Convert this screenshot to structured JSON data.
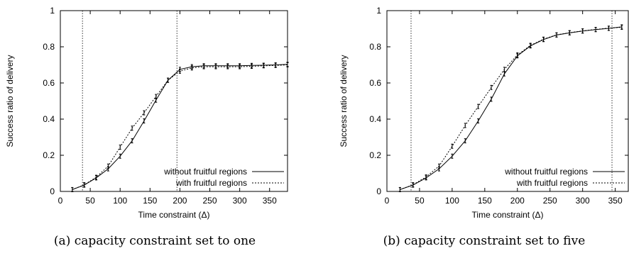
{
  "chart_data": [
    {
      "type": "line",
      "xlabel": "Time constraint (Δ)",
      "ylabel": "Success ratio of delivery",
      "xlim": [
        0,
        380
      ],
      "ylim": [
        0,
        1
      ],
      "xticks": [
        0,
        50,
        100,
        150,
        200,
        250,
        300,
        350
      ],
      "yticks": [
        0,
        0.2,
        0.4,
        0.6,
        0.8,
        1
      ],
      "ytick_labels": [
        "0",
        "0.2",
        "0.4",
        "0.6",
        "0.8",
        "1"
      ],
      "vlines": [
        37,
        195
      ],
      "legend": "bottom-right",
      "caption": "(a) capacity constraint set to one",
      "series": [
        {
          "name": "without fruitful regions",
          "style": "solid",
          "x": [
            20,
            40,
            60,
            80,
            100,
            120,
            140,
            160,
            180,
            200,
            220,
            240,
            260,
            280,
            300,
            320,
            340,
            360,
            380
          ],
          "y": [
            0.01,
            0.035,
            0.075,
            0.125,
            0.195,
            0.28,
            0.39,
            0.505,
            0.615,
            0.675,
            0.69,
            0.695,
            0.695,
            0.695,
            0.695,
            0.697,
            0.698,
            0.7,
            0.703
          ]
        },
        {
          "name": "with fruitful regions",
          "style": "dotted",
          "x": [
            20,
            40,
            60,
            80,
            100,
            120,
            140,
            160,
            180,
            200,
            220,
            240,
            260,
            280,
            300,
            320,
            340,
            360,
            380
          ],
          "y": [
            0.01,
            0.037,
            0.078,
            0.14,
            0.245,
            0.35,
            0.435,
            0.525,
            0.615,
            0.665,
            0.683,
            0.69,
            0.69,
            0.69,
            0.69,
            0.692,
            0.695,
            0.697,
            0.7
          ]
        }
      ]
    },
    {
      "type": "line",
      "xlabel": "Time constraint (Δ)",
      "ylabel": "Success ratio of delivery",
      "xlim": [
        0,
        370
      ],
      "ylim": [
        0,
        1
      ],
      "xticks": [
        0,
        50,
        100,
        150,
        200,
        250,
        300,
        350
      ],
      "yticks": [
        0,
        0.2,
        0.4,
        0.6,
        0.8,
        1
      ],
      "ytick_labels": [
        "0",
        "0.2",
        "0.4",
        "0.6",
        "0.8",
        "1"
      ],
      "vlines": [
        37,
        345
      ],
      "legend": "bottom-right",
      "caption": "(b) capacity constraint set to five",
      "series": [
        {
          "name": "without fruitful regions",
          "style": "solid",
          "x": [
            20,
            40,
            60,
            80,
            100,
            120,
            140,
            160,
            180,
            200,
            220,
            240,
            260,
            280,
            300,
            320,
            340,
            360
          ],
          "y": [
            0.01,
            0.035,
            0.075,
            0.125,
            0.195,
            0.28,
            0.39,
            0.51,
            0.65,
            0.75,
            0.805,
            0.84,
            0.865,
            0.877,
            0.887,
            0.895,
            0.902,
            0.91
          ]
        },
        {
          "name": "with fruitful regions",
          "style": "dotted",
          "x": [
            20,
            40,
            60,
            80,
            100,
            120,
            140,
            160,
            180,
            200,
            220,
            240,
            260,
            280,
            300,
            320,
            340,
            360
          ],
          "y": [
            0.01,
            0.037,
            0.08,
            0.14,
            0.25,
            0.365,
            0.47,
            0.575,
            0.675,
            0.755,
            0.808,
            0.842,
            0.866,
            0.878,
            0.888,
            0.896,
            0.903,
            0.908
          ]
        }
      ]
    }
  ]
}
